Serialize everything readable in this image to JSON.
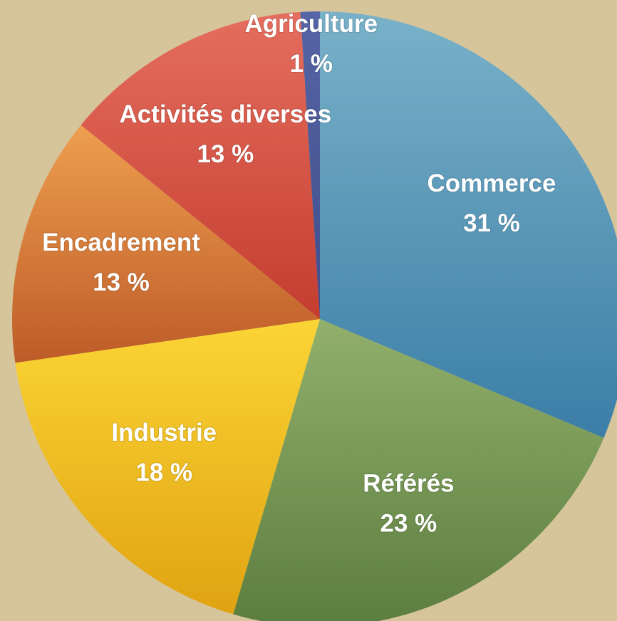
{
  "chart_data": {
    "type": "pie",
    "categories": [
      "Commerce",
      "Référés",
      "Industrie",
      "Encadrement",
      "Activités diverses",
      "Agriculture"
    ],
    "values": [
      31,
      23,
      18,
      13,
      13,
      1
    ],
    "value_labels": [
      "31 %",
      "23 %",
      "18 %",
      "13 %",
      "13 %",
      "1 %"
    ],
    "colors": [
      [
        "#79b1c9",
        "#3b7ea6"
      ],
      [
        "#92b06c",
        "#5b7d3e"
      ],
      [
        "#fbd535",
        "#e0a312"
      ],
      [
        "#ee9f4f",
        "#bd5b28"
      ],
      [
        "#e56e5e",
        "#c43d30"
      ],
      [
        "#5565a5",
        "#3f4d8b"
      ]
    ]
  }
}
